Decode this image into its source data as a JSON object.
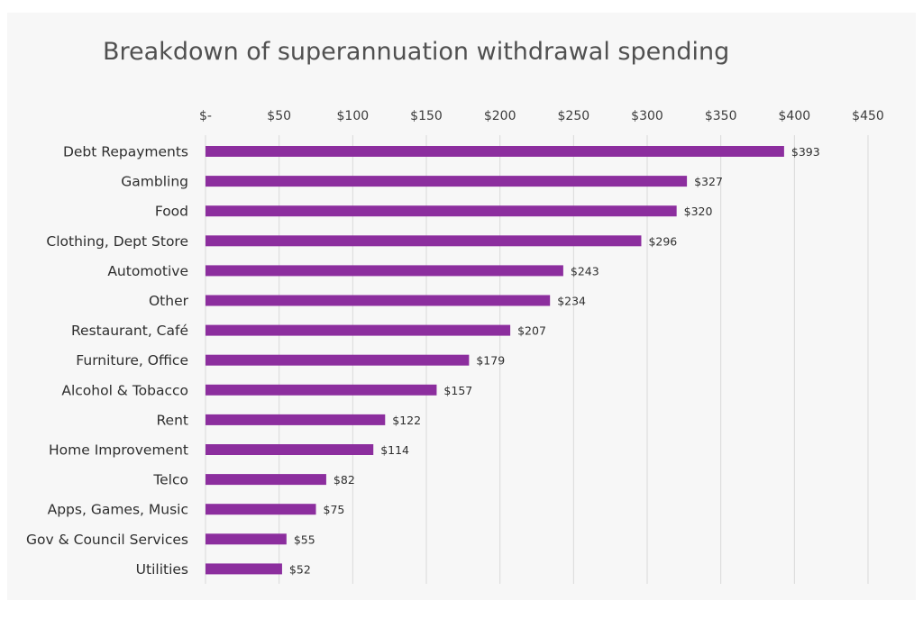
{
  "colors": {
    "bar": "#8c2e9e",
    "grid": "#d9d9d9",
    "background": "#f7f7f7"
  },
  "chart_data": {
    "type": "bar",
    "orientation": "horizontal",
    "title": "Breakdown of superannuation withdrawal spending",
    "xlabel": "",
    "ylabel": "",
    "xlim": [
      0,
      450
    ],
    "x_axis_position": "top",
    "grid": true,
    "legend": "none",
    "tick_values": [
      0,
      50,
      100,
      150,
      200,
      250,
      300,
      350,
      400,
      450
    ],
    "tick_labels": [
      "$-",
      "$50",
      "$100",
      "$150",
      "$200",
      "$250",
      "$300",
      "$350",
      "$400",
      "$450"
    ],
    "categories": [
      "Debt Repayments",
      "Gambling",
      "Food",
      "Clothing, Dept Store",
      "Automotive",
      "Other",
      "Restaurant, Café",
      "Furniture, Office",
      "Alcohol & Tobacco",
      "Rent",
      "Home Improvement",
      "Telco",
      "Apps, Games, Music",
      "Gov & Council Services",
      "Utilities"
    ],
    "values": [
      393,
      327,
      320,
      296,
      243,
      234,
      207,
      179,
      157,
      122,
      114,
      82,
      75,
      55,
      52
    ],
    "data_labels": [
      "$393",
      "$327",
      "$320",
      "$296",
      "$243",
      "$234",
      "$207",
      "$179",
      "$157",
      "$122",
      "$114",
      "$82",
      "$75",
      "$55",
      "$52"
    ]
  }
}
